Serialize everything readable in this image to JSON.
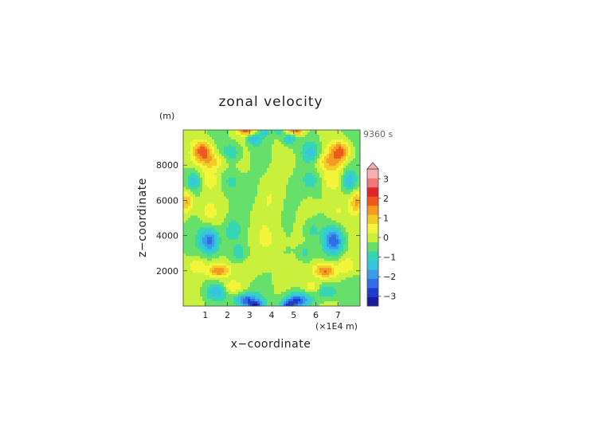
{
  "chart_data": {
    "type": "heatmap",
    "title": "zonal velocity",
    "time_label": "9360 s",
    "xlabel": "x−coordinate",
    "ylabel": "z−coordinate",
    "x_unit": "(×1E4 m)",
    "y_unit": "(m)",
    "xlim": [
      0,
      8
    ],
    "ylim": [
      0,
      10000
    ],
    "x_ticks": [
      1,
      2,
      3,
      4,
      5,
      6,
      7
    ],
    "y_ticks": [
      2000,
      4000,
      6000,
      8000
    ],
    "colorbar": {
      "levels": [
        -3.5,
        -3,
        -2.5,
        -2,
        -1.5,
        -1,
        -0.5,
        0,
        0.5,
        1,
        1.5,
        2,
        2.5,
        3,
        3.5
      ],
      "colors": [
        "#1a1a9a",
        "#1e3ccc",
        "#2f6fe6",
        "#3a9ce8",
        "#37c4e0",
        "#36d6b4",
        "#66e06a",
        "#c8f03c",
        "#f3f53a",
        "#f3cc2a",
        "#f39a22",
        "#ee5a1e",
        "#e0242a",
        "#f07878",
        "#f7b0b0"
      ],
      "tick_labels": [
        "−3",
        "−2",
        "−1",
        "0",
        "1",
        "2",
        "3"
      ],
      "tick_values": [
        -3,
        -2,
        -1,
        0,
        1,
        2,
        3
      ],
      "extend": "max"
    },
    "features": [
      {
        "x": 0.9,
        "z": 8800,
        "amp": 2.2,
        "sx": 0.45,
        "sz": 550
      },
      {
        "x": 7.1,
        "z": 8800,
        "amp": 2.2,
        "sx": 0.45,
        "sz": 550
      },
      {
        "x": 1.35,
        "z": 8200,
        "amp": 1.2,
        "sx": 0.6,
        "sz": 450
      },
      {
        "x": 6.65,
        "z": 8200,
        "amp": 1.2,
        "sx": 0.6,
        "sz": 450
      },
      {
        "x": 0.5,
        "z": 7100,
        "amp": -1.4,
        "sx": 0.35,
        "sz": 600
      },
      {
        "x": 7.5,
        "z": 7100,
        "amp": -1.4,
        "sx": 0.35,
        "sz": 600
      },
      {
        "x": 2.2,
        "z": 8700,
        "amp": -1.1,
        "sx": 0.4,
        "sz": 550
      },
      {
        "x": 5.8,
        "z": 8700,
        "amp": -1.1,
        "sx": 0.4,
        "sz": 550
      },
      {
        "x": 2.2,
        "z": 7100,
        "amp": -0.7,
        "sx": 0.45,
        "sz": 600
      },
      {
        "x": 5.8,
        "z": 7100,
        "amp": -0.7,
        "sx": 0.45,
        "sz": 600
      },
      {
        "x": 1.2,
        "z": 7200,
        "amp": 0.9,
        "sx": 0.5,
        "sz": 700
      },
      {
        "x": 6.8,
        "z": 7200,
        "amp": 0.9,
        "sx": 0.5,
        "sz": 700
      },
      {
        "x": 3.2,
        "z": 9500,
        "amp": -1.3,
        "sx": 0.3,
        "sz": 400
      },
      {
        "x": 4.8,
        "z": 9500,
        "amp": -1.3,
        "sx": 0.3,
        "sz": 400
      },
      {
        "x": 2.9,
        "z": 9950,
        "amp": 2.2,
        "sx": 0.4,
        "sz": 250
      },
      {
        "x": 5.1,
        "z": 9950,
        "amp": 2.2,
        "sx": 0.4,
        "sz": 250
      },
      {
        "x": 3.7,
        "z": 9900,
        "amp": -1.0,
        "sx": 0.2,
        "sz": 300
      },
      {
        "x": 4.3,
        "z": 9900,
        "amp": -1.0,
        "sx": 0.2,
        "sz": 300
      },
      {
        "x": 0.15,
        "z": 5900,
        "amp": 1.6,
        "sx": 0.3,
        "sz": 600
      },
      {
        "x": 7.85,
        "z": 5900,
        "amp": 1.6,
        "sx": 0.3,
        "sz": 600
      },
      {
        "x": 1.1,
        "z": 5400,
        "amp": 0.6,
        "sx": 0.5,
        "sz": 700
      },
      {
        "x": 6.9,
        "z": 5400,
        "amp": 0.6,
        "sx": 0.5,
        "sz": 700
      },
      {
        "x": 1.2,
        "z": 3700,
        "amp": -2.3,
        "sx": 0.45,
        "sz": 700
      },
      {
        "x": 6.8,
        "z": 3700,
        "amp": -2.3,
        "sx": 0.45,
        "sz": 700
      },
      {
        "x": 2.2,
        "z": 4300,
        "amp": -0.8,
        "sx": 0.35,
        "sz": 600
      },
      {
        "x": 5.8,
        "z": 4300,
        "amp": -0.8,
        "sx": 0.35,
        "sz": 600
      },
      {
        "x": 1.6,
        "z": 2000,
        "amp": 2.0,
        "sx": 0.5,
        "sz": 400
      },
      {
        "x": 6.4,
        "z": 2000,
        "amp": 2.0,
        "sx": 0.5,
        "sz": 400
      },
      {
        "x": 0.6,
        "z": 2300,
        "amp": 0.9,
        "sx": 0.4,
        "sz": 450
      },
      {
        "x": 7.4,
        "z": 2300,
        "amp": 0.9,
        "sx": 0.4,
        "sz": 450
      },
      {
        "x": 2.5,
        "z": 3000,
        "amp": -0.8,
        "sx": 0.3,
        "sz": 450
      },
      {
        "x": 5.5,
        "z": 3000,
        "amp": -0.8,
        "sx": 0.3,
        "sz": 450
      },
      {
        "x": 2.9,
        "z": 300,
        "amp": -2.6,
        "sx": 0.55,
        "sz": 400
      },
      {
        "x": 5.1,
        "z": 300,
        "amp": -2.6,
        "sx": 0.55,
        "sz": 400
      },
      {
        "x": 3.3,
        "z": 60,
        "amp": -1.8,
        "sx": 0.3,
        "sz": 200
      },
      {
        "x": 4.7,
        "z": 60,
        "amp": -1.8,
        "sx": 0.3,
        "sz": 200
      },
      {
        "x": 1.5,
        "z": 800,
        "amp": -1.2,
        "sx": 0.5,
        "sz": 450
      },
      {
        "x": 6.5,
        "z": 800,
        "amp": -1.2,
        "sx": 0.5,
        "sz": 450
      },
      {
        "x": 2.2,
        "z": 1100,
        "amp": 1.0,
        "sx": 0.4,
        "sz": 350
      },
      {
        "x": 5.8,
        "z": 1100,
        "amp": 1.0,
        "sx": 0.4,
        "sz": 350
      },
      {
        "x": 4.0,
        "z": 6200,
        "amp": 0.5,
        "sx": 0.6,
        "sz": 1400
      },
      {
        "x": 3.0,
        "z": 6500,
        "amp": -0.35,
        "sx": 0.4,
        "sz": 800
      },
      {
        "x": 5.0,
        "z": 6500,
        "amp": -0.35,
        "sx": 0.4,
        "sz": 800
      },
      {
        "x": 4.0,
        "z": 3800,
        "amp": 0.45,
        "sx": 0.8,
        "sz": 900
      },
      {
        "x": 3.0,
        "z": 2200,
        "amp": 0.4,
        "sx": 0.5,
        "sz": 500
      },
      {
        "x": 5.0,
        "z": 2200,
        "amp": 0.4,
        "sx": 0.5,
        "sz": 500
      }
    ]
  }
}
